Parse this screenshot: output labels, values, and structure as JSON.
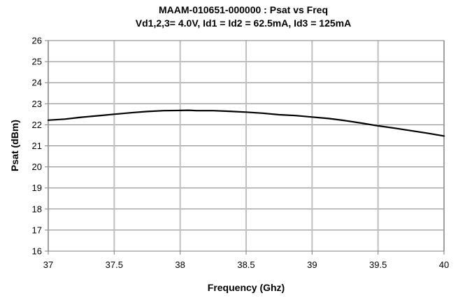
{
  "chart_data": {
    "type": "line",
    "title": "MAAM-010651-000000 : Psat vs Freq",
    "subtitle": "Vd1,2,3= 4.0V, Id1 = Id2 = 62.5mA, Id3 = 125mA",
    "xlabel": "Frequency (Ghz)",
    "ylabel": "Psat (dBm)",
    "xlim": [
      37,
      40
    ],
    "ylim": [
      16,
      26
    ],
    "xticks": [
      37,
      37.5,
      38,
      38.5,
      39,
      39.5,
      40
    ],
    "xtick_labels": [
      "37",
      "37.5",
      "38",
      "38.5",
      "39",
      "39.5",
      "40"
    ],
    "yticks": [
      16,
      17,
      18,
      19,
      20,
      21,
      22,
      23,
      24,
      25,
      26
    ],
    "ytick_labels": [
      "16",
      "17",
      "18",
      "19",
      "20",
      "21",
      "22",
      "23",
      "24",
      "25",
      "26"
    ],
    "grid": true,
    "legend": "none",
    "series": [
      {
        "color": "#000000",
        "x": [
          37.0,
          37.125,
          37.25,
          37.375,
          37.5,
          37.625,
          37.75,
          37.875,
          38.0,
          38.0625,
          38.125,
          38.25,
          38.375,
          38.5,
          38.625,
          38.75,
          38.875,
          39.0,
          39.125,
          39.25,
          39.375,
          39.5,
          39.625,
          39.75,
          39.875,
          40.0
        ],
        "y": [
          22.22,
          22.27,
          22.36,
          22.43,
          22.5,
          22.57,
          22.63,
          22.67,
          22.68,
          22.69,
          22.67,
          22.67,
          22.64,
          22.6,
          22.55,
          22.48,
          22.44,
          22.37,
          22.3,
          22.2,
          22.08,
          21.95,
          21.84,
          21.72,
          21.6,
          21.47
        ]
      }
    ]
  }
}
